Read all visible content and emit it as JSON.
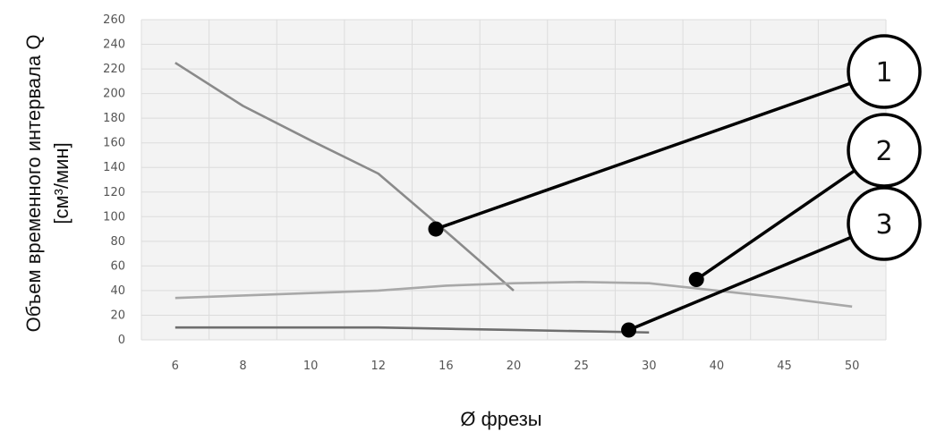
{
  "chart_data": {
    "type": "line",
    "xlabel": "Ø фрезы",
    "ylabel_line1": "Объем временного интервала Q",
    "ylabel_line2": "[см³/мин]",
    "categories": [
      "6",
      "8",
      "10",
      "12",
      "16",
      "20",
      "25",
      "30",
      "40",
      "45",
      "50"
    ],
    "ylim": [
      0,
      260
    ],
    "yticks": [
      0,
      20,
      40,
      60,
      80,
      100,
      120,
      140,
      160,
      180,
      200,
      220,
      240,
      260
    ],
    "grid": true,
    "series": [
      {
        "values": [
          225,
          190,
          162,
          135,
          88,
          40,
          null,
          null,
          null,
          null,
          null
        ],
        "color": "#8a8a8a"
      },
      {
        "values": [
          34,
          36,
          38,
          40,
          44,
          46,
          47,
          46,
          40,
          34,
          27
        ],
        "color": "#a8a8a8"
      },
      {
        "values": [
          10,
          10,
          10,
          10,
          9,
          8,
          7,
          6,
          null,
          null,
          null
        ],
        "color": "#6e6e6e"
      }
    ],
    "callouts": [
      {
        "label": "1",
        "x_index": 3.85,
        "y": 90
      },
      {
        "label": "2",
        "x_index": 7.7,
        "y": 49
      },
      {
        "label": "3",
        "x_index": 6.7,
        "y": 8
      }
    ]
  }
}
